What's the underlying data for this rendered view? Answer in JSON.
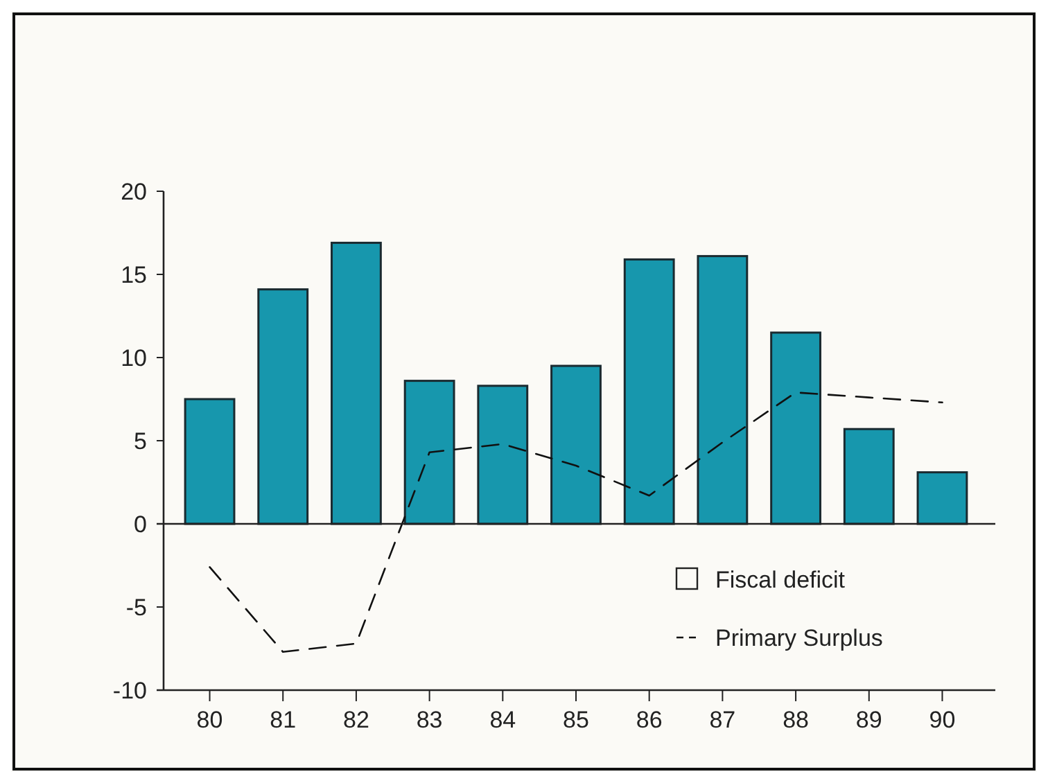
{
  "chart_data": {
    "type": "bar",
    "categories": [
      "80",
      "81",
      "82",
      "83",
      "84",
      "85",
      "86",
      "87",
      "88",
      "89",
      "90"
    ],
    "series": [
      {
        "name": "Fiscal deficit",
        "color": "#1797ad",
        "values": [
          7.5,
          14.1,
          16.9,
          8.6,
          8.3,
          9.5,
          15.9,
          16.1,
          11.5,
          5.7,
          3.1
        ]
      },
      {
        "name": "Primary Surplus",
        "type": "line",
        "color": "#111111",
        "line_style": "dashed",
        "values": [
          -2.6,
          -7.7,
          -7.2,
          4.3,
          4.8,
          3.5,
          1.7,
          4.9,
          7.9,
          7.6,
          7.3
        ]
      }
    ],
    "ylim": [
      -10,
      20
    ],
    "yticks": [
      -10,
      -5,
      0,
      5,
      10,
      15,
      20
    ],
    "legend": "bottom right"
  }
}
